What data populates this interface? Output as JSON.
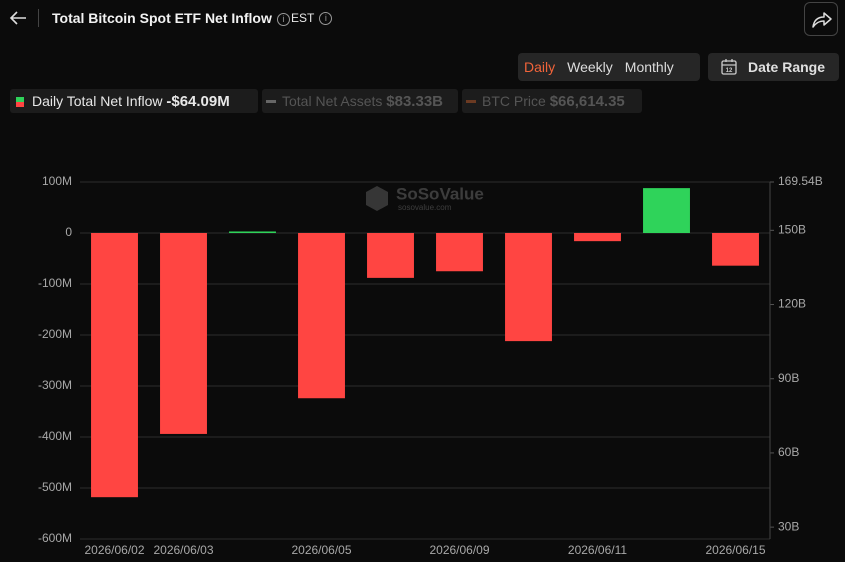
{
  "header": {
    "title": "Total Bitcoin Spot ETF Net Inflow",
    "timezone": "EST"
  },
  "controls": {
    "periods": [
      "Daily",
      "Weekly",
      "Monthly"
    ],
    "active_period": 0,
    "date_range": "Date Range",
    "calendar_day": "12"
  },
  "legend": [
    {
      "value": "-$64.09M"
    },
    {
      "label": "Total Net Assets",
      "value": "$83.33B"
    },
    {
      "label": "BTC Price",
      "value": "$66,614.35"
    }
  ],
  "watermark": {
    "name": "SoSoValue",
    "site": "sosovalue.com"
  },
  "chart_data": {
    "type": "bar",
    "categories": [
      "2026/06/02",
      "2026/06/03",
      null,
      "2026/06/05",
      null,
      "2026/06/09",
      null,
      "2026/06/11",
      null,
      "2026/06/15"
    ],
    "series": [
      {
        "name": "Daily Total Net Inflow",
        "values": [
          -518,
          -394,
          3,
          -324,
          -88,
          -75,
          -212,
          -16,
          88,
          -64.09
        ]
      }
    ],
    "positive_color": "#2fd35a",
    "negative_color": "#ff4542",
    "ylim": [
      -600,
      100
    ],
    "yticks": [
      {
        "value": 100,
        "label": "100M"
      },
      0,
      {
        "value": -100,
        "label": "-100M"
      },
      {
        "value": -200,
        "label": "-200M"
      },
      {
        "value": -300,
        "label": "-300M"
      },
      {
        "value": -400,
        "label": "-400M"
      },
      {
        "value": -500,
        "label": "-500M"
      },
      {
        "value": -600,
        "label": "-600M"
      }
    ],
    "y2lim": [
      25.2,
      169.54
    ],
    "y2ticks": [
      {
        "value": 169.54,
        "label": "169.54B"
      },
      {
        "value": 150,
        "label": "150B"
      },
      {
        "value": 120,
        "label": "120B"
      },
      {
        "value": 90,
        "label": "90B"
      },
      {
        "value": 60,
        "label": "60B"
      },
      {
        "value": 30,
        "label": "30B"
      }
    ],
    "grid": true
  }
}
